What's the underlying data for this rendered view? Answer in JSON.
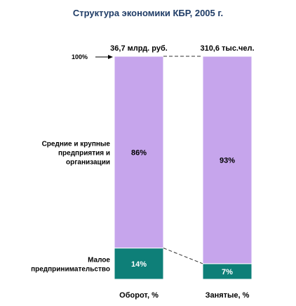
{
  "chart_data": {
    "type": "bar",
    "stacked": true,
    "percent": true,
    "title": "Структура экономики КБР, 2005 г.",
    "categories": [
      "Оборот, %",
      "Занятые, %"
    ],
    "bar_headers": [
      "36,7 млрд. руб.",
      "310,6 тыс.чел."
    ],
    "series": [
      {
        "name": "Малое предпринимательство",
        "values": [
          14,
          7
        ],
        "labels": [
          "14%",
          "7%"
        ],
        "color": "#0e7f78"
      },
      {
        "name": "Средние и крупные предприятия и организации",
        "values": [
          86,
          93
        ],
        "labels": [
          "86%",
          "93%"
        ],
        "color": "#c6a5ec"
      }
    ],
    "series_label_lines": [
      [
        "Малое",
        "предпринимательство"
      ],
      [
        "Средние и крупные",
        "предприятия и",
        "организации"
      ]
    ],
    "ylim": [
      0,
      100
    ],
    "y_marker": "100%",
    "grid": false,
    "legend": "left"
  }
}
